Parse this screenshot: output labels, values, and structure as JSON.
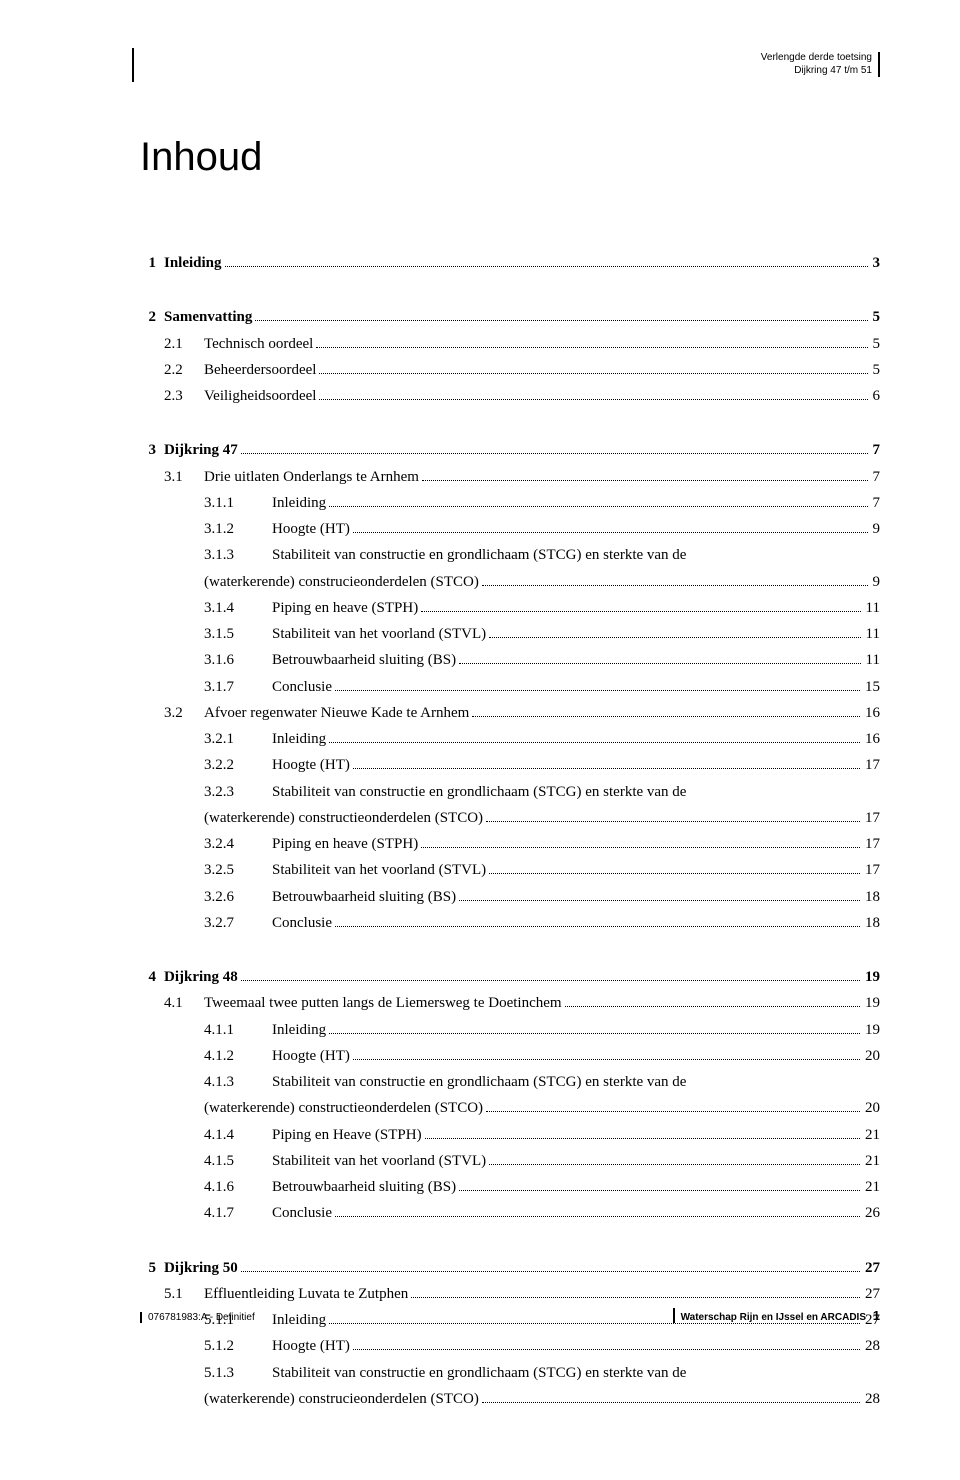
{
  "header": {
    "line1": "Verlengde derde toetsing",
    "line2": "Dijkring 47 t/m 51"
  },
  "title": "Inhoud",
  "toc": [
    {
      "num": "1",
      "label": "Inleiding",
      "page": "3",
      "subs": []
    },
    {
      "num": "2",
      "label": "Samenvatting",
      "page": "5",
      "subs": [
        {
          "num": "2.1",
          "label": "Technisch oordeel",
          "page": "5",
          "subs": []
        },
        {
          "num": "2.2",
          "label": "Beheerdersoordeel",
          "page": "5",
          "subs": []
        },
        {
          "num": "2.3",
          "label": "Veiligheidsoordeel",
          "page": "6",
          "subs": []
        }
      ]
    },
    {
      "num": "3",
      "label": "Dijkring 47",
      "page": "7",
      "subs": [
        {
          "num": "3.1",
          "label": "Drie uitlaten Onderlangs te Arnhem",
          "page": "7",
          "subs": [
            {
              "num": "3.1.1",
              "label": "Inleiding",
              "page": "7"
            },
            {
              "num": "3.1.2",
              "label": "Hoogte (HT)",
              "page": "9"
            },
            {
              "num": "3.1.3",
              "label": "Stabiliteit van constructie en grondlichaam (STCG) en sterkte van de",
              "cont": "(waterkerende) construcieonderdelen (STCO)",
              "page": "9"
            },
            {
              "num": "3.1.4",
              "label": "Piping en heave (STPH)",
              "page": "11"
            },
            {
              "num": "3.1.5",
              "label": "Stabiliteit van het voorland (STVL)",
              "page": "11"
            },
            {
              "num": "3.1.6",
              "label": "Betrouwbaarheid sluiting (BS)",
              "page": "11"
            },
            {
              "num": "3.1.7",
              "label": "Conclusie",
              "page": "15"
            }
          ]
        },
        {
          "num": "3.2",
          "label": "Afvoer regenwater Nieuwe Kade te Arnhem",
          "page": "16",
          "subs": [
            {
              "num": "3.2.1",
              "label": "Inleiding",
              "page": "16"
            },
            {
              "num": "3.2.2",
              "label": "Hoogte (HT)",
              "page": "17"
            },
            {
              "num": "3.2.3",
              "label": "Stabiliteit van constructie en grondlichaam (STCG) en sterkte van de",
              "cont": "(waterkerende) constructieonderdelen (STCO)",
              "page": "17"
            },
            {
              "num": "3.2.4",
              "label": "Piping en heave (STPH)",
              "page": "17"
            },
            {
              "num": "3.2.5",
              "label": "Stabiliteit van het voorland (STVL)",
              "page": "17"
            },
            {
              "num": "3.2.6",
              "label": "Betrouwbaarheid sluiting (BS)",
              "page": "18"
            },
            {
              "num": "3.2.7",
              "label": "Conclusie",
              "page": "18"
            }
          ]
        }
      ]
    },
    {
      "num": "4",
      "label": "Dijkring 48",
      "page": "19",
      "subs": [
        {
          "num": "4.1",
          "label": "Tweemaal twee putten langs de Liemersweg te Doetinchem",
          "page": "19",
          "subs": [
            {
              "num": "4.1.1",
              "label": "Inleiding",
              "page": "19"
            },
            {
              "num": "4.1.2",
              "label": "Hoogte (HT)",
              "page": "20"
            },
            {
              "num": "4.1.3",
              "label": "Stabiliteit van constructie en grondlichaam (STCG) en sterkte van de",
              "cont": "(waterkerende) constructieonderdelen (STCO)",
              "page": "20"
            },
            {
              "num": "4.1.4",
              "label": "Piping en Heave (STPH)",
              "page": "21"
            },
            {
              "num": "4.1.5",
              "label": "Stabiliteit van het voorland (STVL)",
              "page": "21"
            },
            {
              "num": "4.1.6",
              "label": "Betrouwbaarheid sluiting (BS)",
              "page": "21"
            },
            {
              "num": "4.1.7",
              "label": "Conclusie",
              "page": "26"
            }
          ]
        }
      ]
    },
    {
      "num": "5",
      "label": "Dijkring 50",
      "page": "27",
      "subs": [
        {
          "num": "5.1",
          "label": "Effluentleiding Luvata te Zutphen",
          "page": "27",
          "subs": [
            {
              "num": "5.1.1",
              "label": "Inleiding",
              "page": "27"
            },
            {
              "num": "5.1.2",
              "label": "Hoogte (HT)",
              "page": "28"
            },
            {
              "num": "5.1.3",
              "label": "Stabiliteit van constructie en grondlichaam (STCG) en sterkte van de",
              "cont": "(waterkerende) construcieonderdelen (STCO)",
              "page": "28"
            }
          ]
        }
      ]
    }
  ],
  "footer": {
    "left": "076781983:A - Definitief",
    "right_text": "Waterschap Rijn en IJssel en ARCADIS",
    "right_page": "1"
  }
}
